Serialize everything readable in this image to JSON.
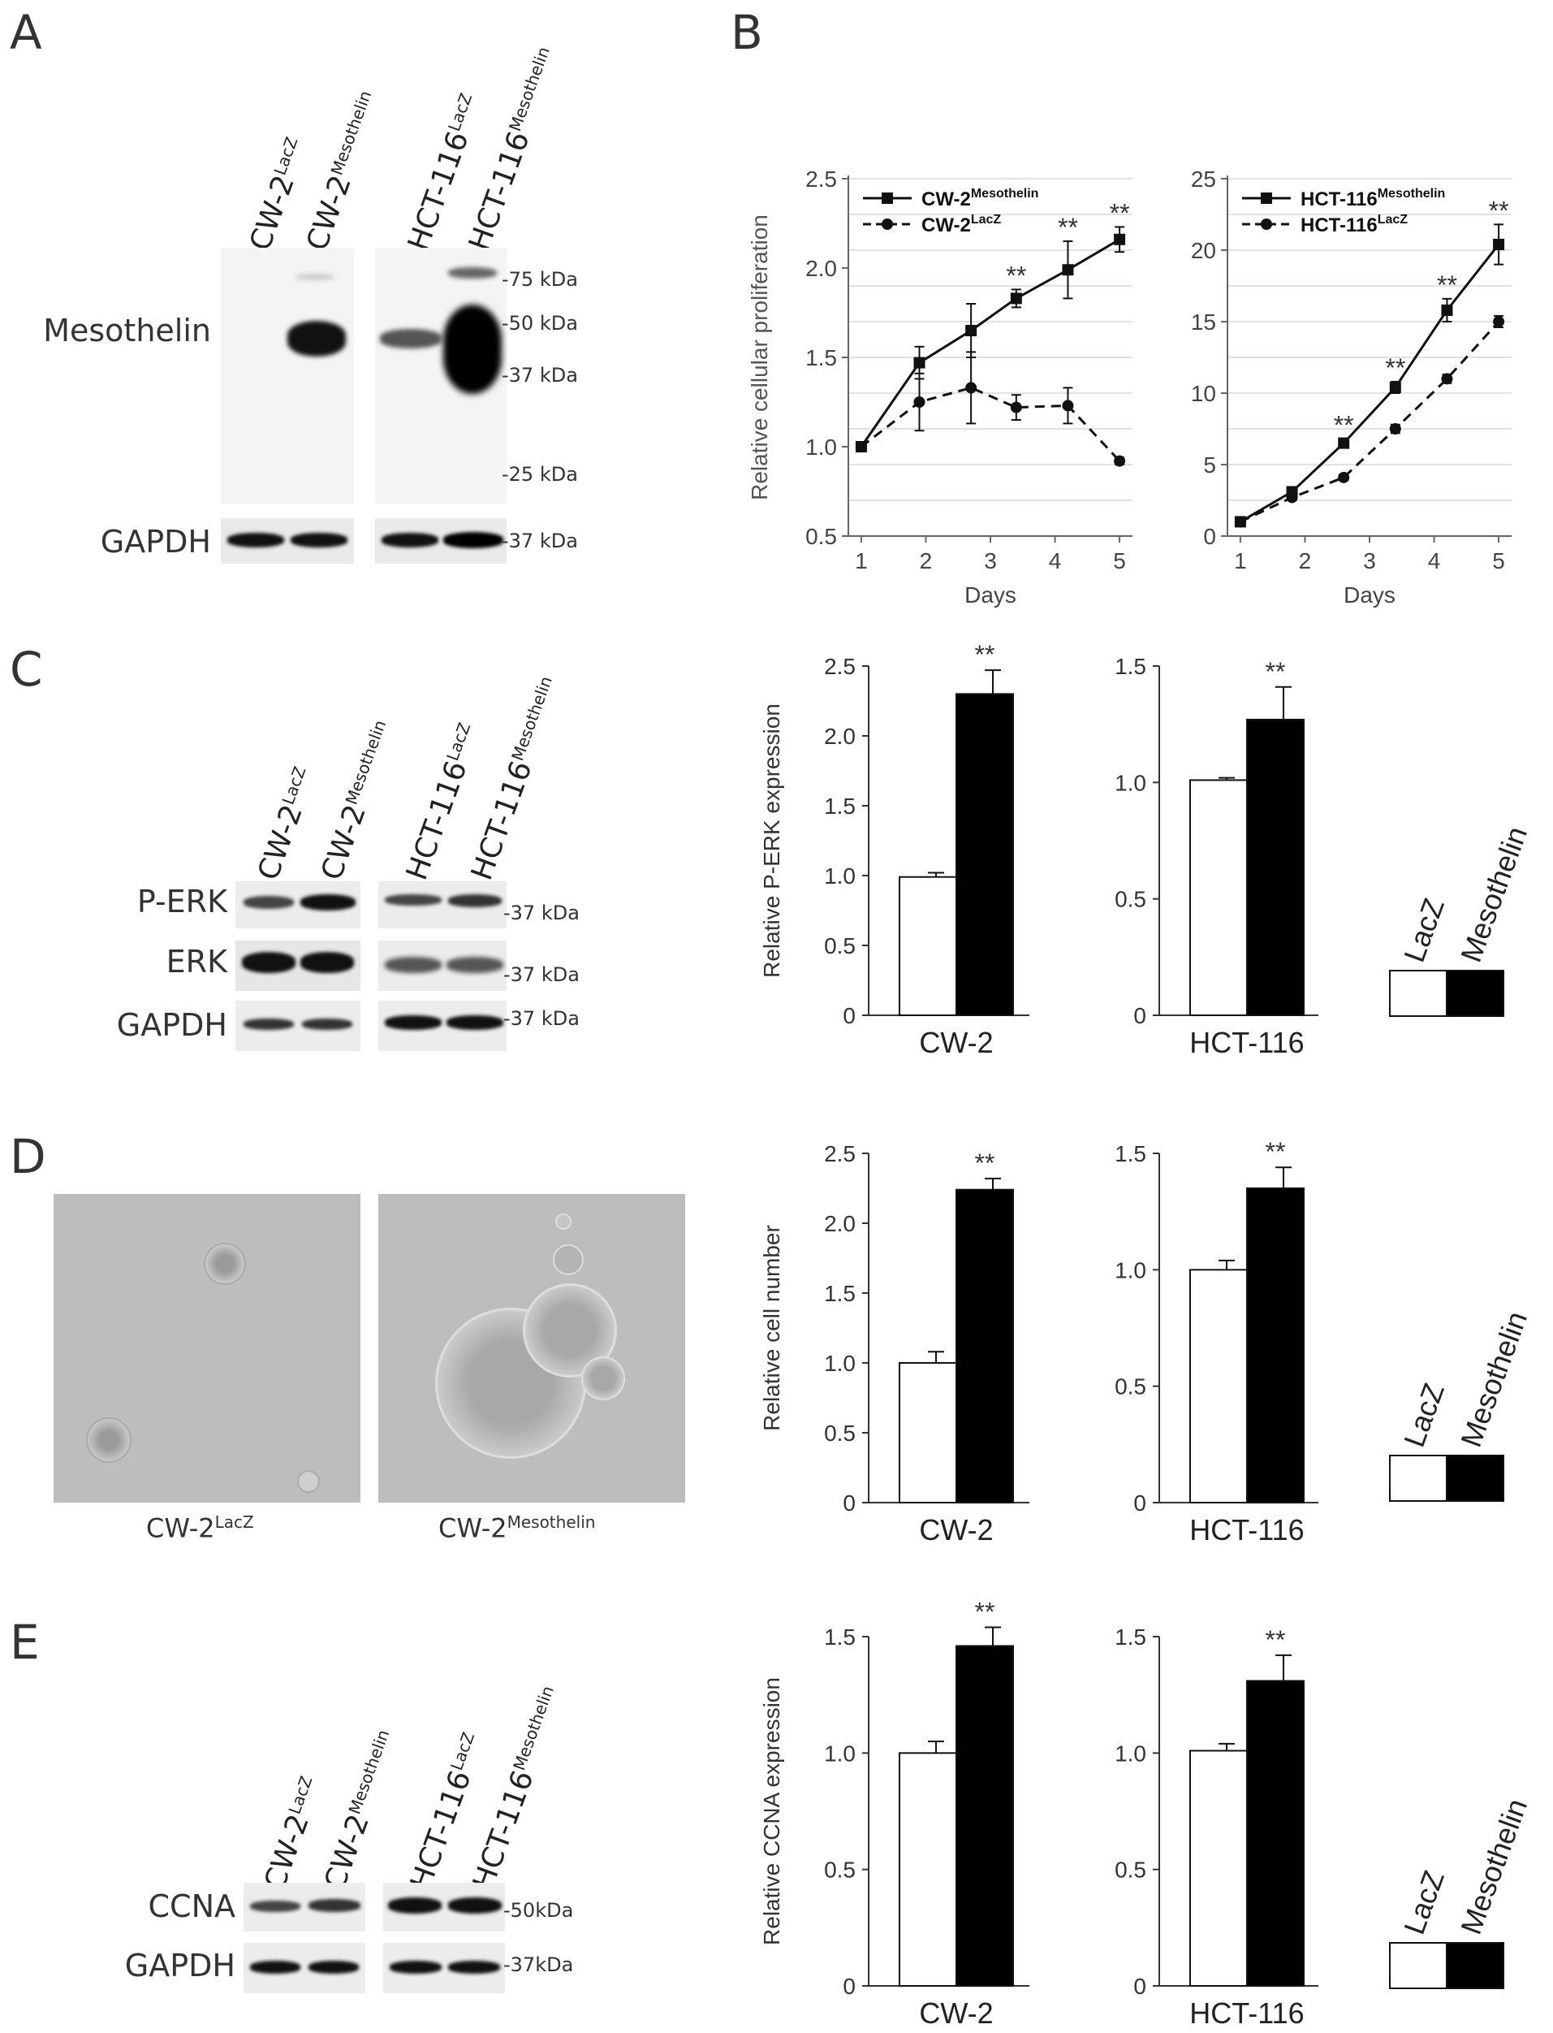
{
  "panels": {
    "A": "A",
    "B": "B",
    "C": "C",
    "D": "D",
    "E": "E"
  },
  "blot_lanes": {
    "cw2": "CW-2",
    "hct": "HCT-116",
    "lacz": "LacZ",
    "meso": "Mesothelin"
  },
  "panelA": {
    "rows": [
      "Mesothelin",
      "GAPDH"
    ],
    "markers": [
      "-75 kDa",
      "-50 kDa",
      "-37 kDa",
      "-25 kDa",
      "-37 kDa"
    ]
  },
  "panelC_blot": {
    "rows": [
      "P-ERK",
      "ERK",
      "GAPDH"
    ],
    "markers": [
      "-37 kDa",
      "-37 kDa",
      "-37 kDa"
    ]
  },
  "panelD_images": {
    "captions": [
      {
        "base": "CW-2",
        "sup": "LacZ"
      },
      {
        "base": "CW-2",
        "sup": "Mesothelin"
      }
    ]
  },
  "panelE_blot": {
    "rows": [
      "CCNA",
      "GAPDH"
    ],
    "markers": [
      "-50kDa",
      "-37kDa"
    ]
  },
  "legend": {
    "lacz": "LacZ",
    "meso": "Mesothelin",
    "lacz_color": "#ffffff",
    "meso_color": "#000000"
  },
  "sig": "**",
  "chart_data": [
    {
      "id": "B-left",
      "type": "line",
      "xlabel": "Days",
      "ylabel": "Relative cellular proliferation",
      "xlim": [
        0.8,
        5.2
      ],
      "ylim": [
        0.5,
        2.5
      ],
      "xticks": [
        1,
        2,
        3,
        4,
        5
      ],
      "yticks": [
        0.5,
        1.0,
        1.5,
        2.0,
        2.5
      ],
      "ytick_labels": [
        "0.5",
        "1.0",
        "1.5",
        "2.0",
        "2.5"
      ],
      "grid": true,
      "legend_position": "top-left",
      "x": [
        1,
        2,
        3,
        4,
        5
      ],
      "series": [
        {
          "name": "CW-2",
          "name_sup": "Mesothelin",
          "marker": "square",
          "dash": false,
          "x": [
            1,
            1.9,
            2.7,
            3.4,
            4.2,
            5
          ],
          "values": [
            1.0,
            1.47,
            1.65,
            1.83,
            1.99,
            2.16
          ],
          "err": [
            0,
            0.09,
            0.15,
            0.05,
            0.16,
            0.07
          ]
        },
        {
          "name": "CW-2",
          "name_sup": "LacZ",
          "marker": "circle",
          "dash": true,
          "x": [
            1,
            1.9,
            2.7,
            3.4,
            4.2,
            5
          ],
          "values": [
            1.0,
            1.25,
            1.33,
            1.22,
            1.23,
            0.92
          ],
          "err": [
            0,
            0.16,
            0.2,
            0.07,
            0.1,
            0.02
          ]
        }
      ],
      "significance_x": [
        3.4,
        4.2,
        5
      ]
    },
    {
      "id": "B-right",
      "type": "line",
      "xlabel": "Days",
      "ylabel": "",
      "xlim": [
        0.8,
        5.2
      ],
      "ylim": [
        0,
        25
      ],
      "xticks": [
        1,
        2,
        3,
        4,
        5
      ],
      "yticks": [
        0,
        5,
        10,
        15,
        20,
        25
      ],
      "ytick_labels": [
        "0",
        "5",
        "10",
        "15",
        "20",
        "25"
      ],
      "grid": true,
      "legend_position": "top-left",
      "series": [
        {
          "name": "HCT-116",
          "name_sup": "Mesothelin",
          "marker": "square",
          "dash": false,
          "x": [
            1,
            1.8,
            2.6,
            3.4,
            4.2,
            5
          ],
          "values": [
            1.0,
            3.1,
            6.5,
            10.4,
            15.8,
            20.4
          ],
          "err": [
            0.1,
            0.2,
            0.3,
            0.4,
            0.8,
            1.4
          ]
        },
        {
          "name": "HCT-116",
          "name_sup": "LacZ",
          "marker": "circle",
          "dash": true,
          "x": [
            1,
            1.8,
            2.6,
            3.4,
            4.2,
            5
          ],
          "values": [
            1.0,
            2.7,
            4.1,
            7.5,
            11.0,
            15.0
          ],
          "err": [
            0.1,
            0.2,
            0.2,
            0.3,
            0.3,
            0.4
          ]
        }
      ],
      "significance_x": [
        2.6,
        3.4,
        4.2,
        5
      ]
    },
    {
      "id": "C-cw2",
      "type": "bar",
      "ylabel": "Relative P-ERK expression",
      "category_label": "CW-2",
      "ylim": [
        0,
        2.5
      ],
      "yticks": [
        0,
        0.5,
        1.0,
        1.5,
        2.0,
        2.5
      ],
      "ytick_labels": [
        "0",
        "0.5",
        "1.0",
        "1.5",
        "2.0",
        "2.5"
      ],
      "series": [
        {
          "name": "LacZ",
          "values": [
            0.99
          ],
          "err": [
            0.03
          ]
        },
        {
          "name": "Mesothelin",
          "values": [
            2.3
          ],
          "err": [
            0.17
          ]
        }
      ],
      "significance": "**"
    },
    {
      "id": "C-hct",
      "type": "bar",
      "ylabel": "",
      "category_label": "HCT-116",
      "ylim": [
        0,
        1.5
      ],
      "yticks": [
        0,
        0.5,
        1.0,
        1.5
      ],
      "ytick_labels": [
        "0",
        "0.5",
        "1.0",
        "1.5"
      ],
      "series": [
        {
          "name": "LacZ",
          "values": [
            1.01
          ],
          "err": [
            0.01
          ]
        },
        {
          "name": "Mesothelin",
          "values": [
            1.27
          ],
          "err": [
            0.14
          ]
        }
      ],
      "significance": "**"
    },
    {
      "id": "D-cw2",
      "type": "bar",
      "ylabel": "Relative cell number",
      "category_label": "CW-2",
      "ylim": [
        0,
        2.5
      ],
      "yticks": [
        0,
        0.5,
        1.0,
        1.5,
        2.0,
        2.5
      ],
      "ytick_labels": [
        "0",
        "0.5",
        "1.0",
        "1.5",
        "2.0",
        "2.5"
      ],
      "series": [
        {
          "name": "LacZ",
          "values": [
            1.0
          ],
          "err": [
            0.08
          ]
        },
        {
          "name": "Mesothelin",
          "values": [
            2.24
          ],
          "err": [
            0.08
          ]
        }
      ],
      "significance": "**"
    },
    {
      "id": "D-hct",
      "type": "bar",
      "ylabel": "",
      "category_label": "HCT-116",
      "ylim": [
        0,
        1.5
      ],
      "yticks": [
        0,
        0.5,
        1.0,
        1.5
      ],
      "ytick_labels": [
        "0",
        "0.5",
        "1.0",
        "1.5"
      ],
      "series": [
        {
          "name": "LacZ",
          "values": [
            1.0
          ],
          "err": [
            0.04
          ]
        },
        {
          "name": "Mesothelin",
          "values": [
            1.35
          ],
          "err": [
            0.09
          ]
        }
      ],
      "significance": "**"
    },
    {
      "id": "E-cw2",
      "type": "bar",
      "ylabel": "Relative CCNA expression",
      "category_label": "CW-2",
      "ylim": [
        0,
        1.5
      ],
      "yticks": [
        0,
        0.5,
        1.0,
        1.5
      ],
      "ytick_labels": [
        "0",
        "0.5",
        "1.0",
        "1.5"
      ],
      "series": [
        {
          "name": "LacZ",
          "values": [
            1.0
          ],
          "err": [
            0.05
          ]
        },
        {
          "name": "Mesothelin",
          "values": [
            1.46
          ],
          "err": [
            0.08
          ]
        }
      ],
      "significance": "**"
    },
    {
      "id": "E-hct",
      "type": "bar",
      "ylabel": "",
      "category_label": "HCT-116",
      "ylim": [
        0,
        1.5
      ],
      "yticks": [
        0,
        0.5,
        1.0,
        1.5
      ],
      "ytick_labels": [
        "0",
        "0.5",
        "1.0",
        "1.5"
      ],
      "series": [
        {
          "name": "LacZ",
          "values": [
            1.01
          ],
          "err": [
            0.03
          ]
        },
        {
          "name": "Mesothelin",
          "values": [
            1.31
          ],
          "err": [
            0.11
          ]
        }
      ],
      "significance": "**"
    }
  ]
}
